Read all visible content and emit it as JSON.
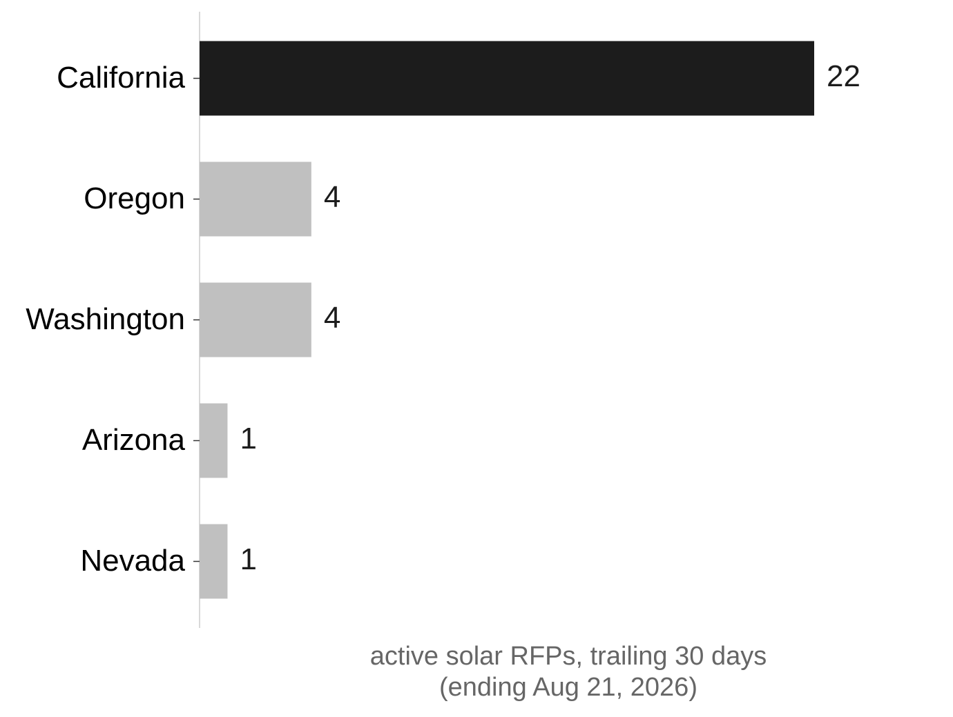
{
  "chart_data": {
    "type": "barh",
    "categories": [
      "California",
      "Oregon",
      "Washington",
      "Arizona",
      "Nevada"
    ],
    "values": [
      22,
      4,
      4,
      1,
      1
    ],
    "colors": [
      "#1c1c1c",
      "#c0c0c0",
      "#c0c0c0",
      "#c0c0c0",
      "#c0c0c0"
    ],
    "xlabel": [
      "active solar RFPs, trailing 30 days",
      "(ending Aug 21, 2026)"
    ],
    "xlim": [
      0,
      26.4
    ],
    "grid": false
  }
}
